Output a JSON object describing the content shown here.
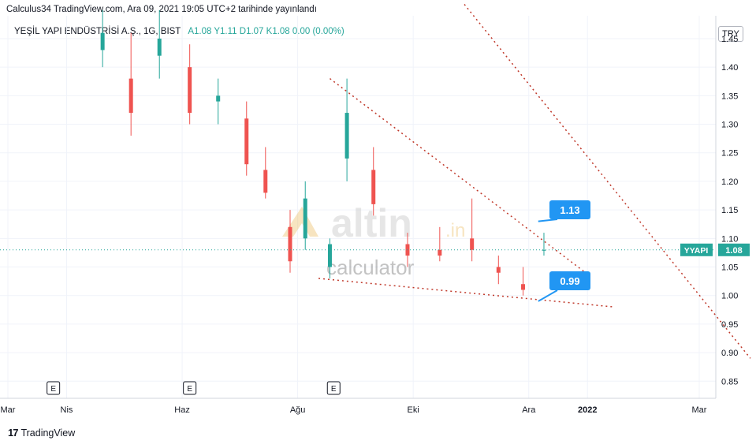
{
  "header": {
    "published": "Calculus34 TradingView.com, Ara 09, 2021 19:05 UTC+2 tarihinde yayınlandı"
  },
  "legend": {
    "symbol": "YEŞİL YAPI ENDÜSTRİSİ A.Ş., 1G, BIST",
    "ohlc": "A1.08  Y1.11  D1.07  K1.08  0.00 (0.00%)"
  },
  "currency": "TRY",
  "footer": {
    "brand": "TradingView"
  },
  "watermark": {
    "word1": "altin",
    "suffix": ".in",
    "word2": "calculator"
  },
  "colors": {
    "up": "#26a69a",
    "down": "#ef5350",
    "trend": "#c0392b",
    "label": "#2196f3",
    "price_line": "#26a69a"
  },
  "chart_data": {
    "type": "candlestick",
    "symbol": "YYAPI",
    "last_price": "1.08",
    "yticks": [
      "1.45",
      "1.40",
      "1.35",
      "1.30",
      "1.25",
      "1.20",
      "1.15",
      "1.10",
      "1.05",
      "1.00",
      "0.95",
      "0.90",
      "0.85"
    ],
    "ylim": [
      0.82,
      1.49
    ],
    "xticks": [
      "Mar",
      "Nis",
      "Haz",
      "Ağu",
      "Eki",
      "Ara",
      "2022",
      "Mar"
    ],
    "event_markers": [
      "E",
      "E",
      "E"
    ],
    "annotations": [
      "1.13",
      "0.99"
    ],
    "trendlines": [
      {
        "from": [
          "2021-08-18",
          1.38
        ],
        "to": [
          "2021-12-31",
          1.04
        ]
      },
      {
        "from": [
          "2021-08-12",
          1.03
        ],
        "to": [
          "2022-01-15",
          0.98
        ]
      },
      {
        "from": [
          "2021-10-28",
          1.51
        ],
        "to": [
          "2022-03-28",
          0.89
        ]
      }
    ],
    "candles": [
      {
        "d": "2021-04-20",
        "o": 1.43,
        "h": 1.5,
        "l": 1.4,
        "c": 1.46
      },
      {
        "d": "2021-05-05",
        "o": 1.38,
        "h": 1.46,
        "l": 1.28,
        "c": 1.32
      },
      {
        "d": "2021-05-20",
        "o": 1.42,
        "h": 1.5,
        "l": 1.38,
        "c": 1.45
      },
      {
        "d": "2021-06-05",
        "o": 1.4,
        "h": 1.44,
        "l": 1.3,
        "c": 1.32
      },
      {
        "d": "2021-06-20",
        "o": 1.34,
        "h": 1.38,
        "l": 1.3,
        "c": 1.35
      },
      {
        "d": "2021-07-05",
        "o": 1.31,
        "h": 1.34,
        "l": 1.21,
        "c": 1.23
      },
      {
        "d": "2021-07-15",
        "o": 1.22,
        "h": 1.26,
        "l": 1.17,
        "c": 1.18
      },
      {
        "d": "2021-07-28",
        "o": 1.12,
        "h": 1.15,
        "l": 1.04,
        "c": 1.06
      },
      {
        "d": "2021-08-05",
        "o": 1.1,
        "h": 1.2,
        "l": 1.08,
        "c": 1.17
      },
      {
        "d": "2021-08-18",
        "o": 1.05,
        "h": 1.1,
        "l": 1.03,
        "c": 1.09
      },
      {
        "d": "2021-08-27",
        "o": 1.24,
        "h": 1.38,
        "l": 1.2,
        "c": 1.32
      },
      {
        "d": "2021-09-10",
        "o": 1.22,
        "h": 1.26,
        "l": 1.14,
        "c": 1.16
      },
      {
        "d": "2021-09-28",
        "o": 1.09,
        "h": 1.11,
        "l": 1.05,
        "c": 1.07
      },
      {
        "d": "2021-10-15",
        "o": 1.08,
        "h": 1.12,
        "l": 1.06,
        "c": 1.07
      },
      {
        "d": "2021-11-01",
        "o": 1.1,
        "h": 1.17,
        "l": 1.06,
        "c": 1.08
      },
      {
        "d": "2021-11-15",
        "o": 1.05,
        "h": 1.07,
        "l": 1.02,
        "c": 1.04
      },
      {
        "d": "2021-11-28",
        "o": 1.02,
        "h": 1.05,
        "l": 1.0,
        "c": 1.01
      },
      {
        "d": "2021-12-09",
        "o": 1.08,
        "h": 1.11,
        "l": 1.07,
        "c": 1.08
      }
    ]
  }
}
